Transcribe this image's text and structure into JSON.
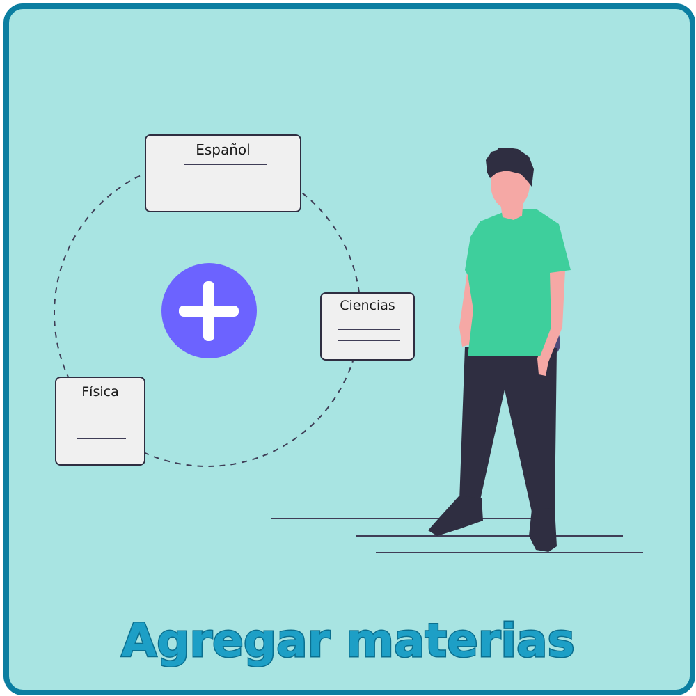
{
  "subjects": [
    {
      "name": "Español"
    },
    {
      "name": "Ciencias"
    },
    {
      "name": "Física"
    }
  ],
  "add_button": {
    "icon": "plus-icon"
  },
  "caption": "Agregar materias",
  "colors": {
    "background": "#a8e4e2",
    "border": "#0b7ea1",
    "accent": "#6c63ff",
    "shirt": "#3ecf9c",
    "pants": "#2f2e41",
    "skin": "#f5a8a5",
    "caption": "#1d9fc6"
  }
}
